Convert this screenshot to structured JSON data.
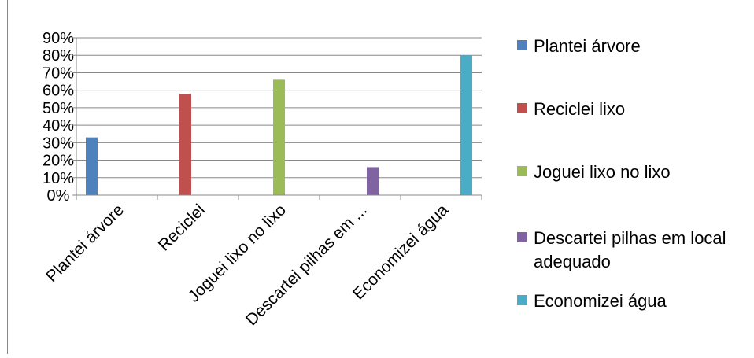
{
  "chart_data": {
    "type": "bar",
    "categories": [
      "Plantei árvore",
      "Reciclei",
      "Joguei lixo no lixo",
      "Descartei pilhas em ...",
      "Economizei água"
    ],
    "series": [
      {
        "name": "Plantei árvore",
        "color": "#4F81BD",
        "values": [
          33,
          null,
          null,
          null,
          null
        ]
      },
      {
        "name": "Reciclei lixo",
        "color": "#C0504D",
        "values": [
          null,
          58,
          null,
          null,
          null
        ]
      },
      {
        "name": "Joguei lixo no lixo",
        "color": "#9BBB59",
        "values": [
          null,
          null,
          66,
          null,
          null
        ]
      },
      {
        "name": "Descartei pilhas em local adequado",
        "color": "#8064A2",
        "values": [
          null,
          null,
          null,
          16,
          null
        ]
      },
      {
        "name": "Economizei água",
        "color": "#4BACC6",
        "values": [
          null,
          null,
          null,
          null,
          80
        ]
      }
    ],
    "y_unit": "%",
    "ylim": [
      0,
      90
    ],
    "yticks": [
      "0%",
      "10%",
      "20%",
      "30%",
      "40%",
      "50%",
      "60%",
      "70%",
      "80%",
      "90%"
    ],
    "grid": true,
    "legend_position": "right",
    "title": "",
    "xlabel": "",
    "ylabel": ""
  }
}
